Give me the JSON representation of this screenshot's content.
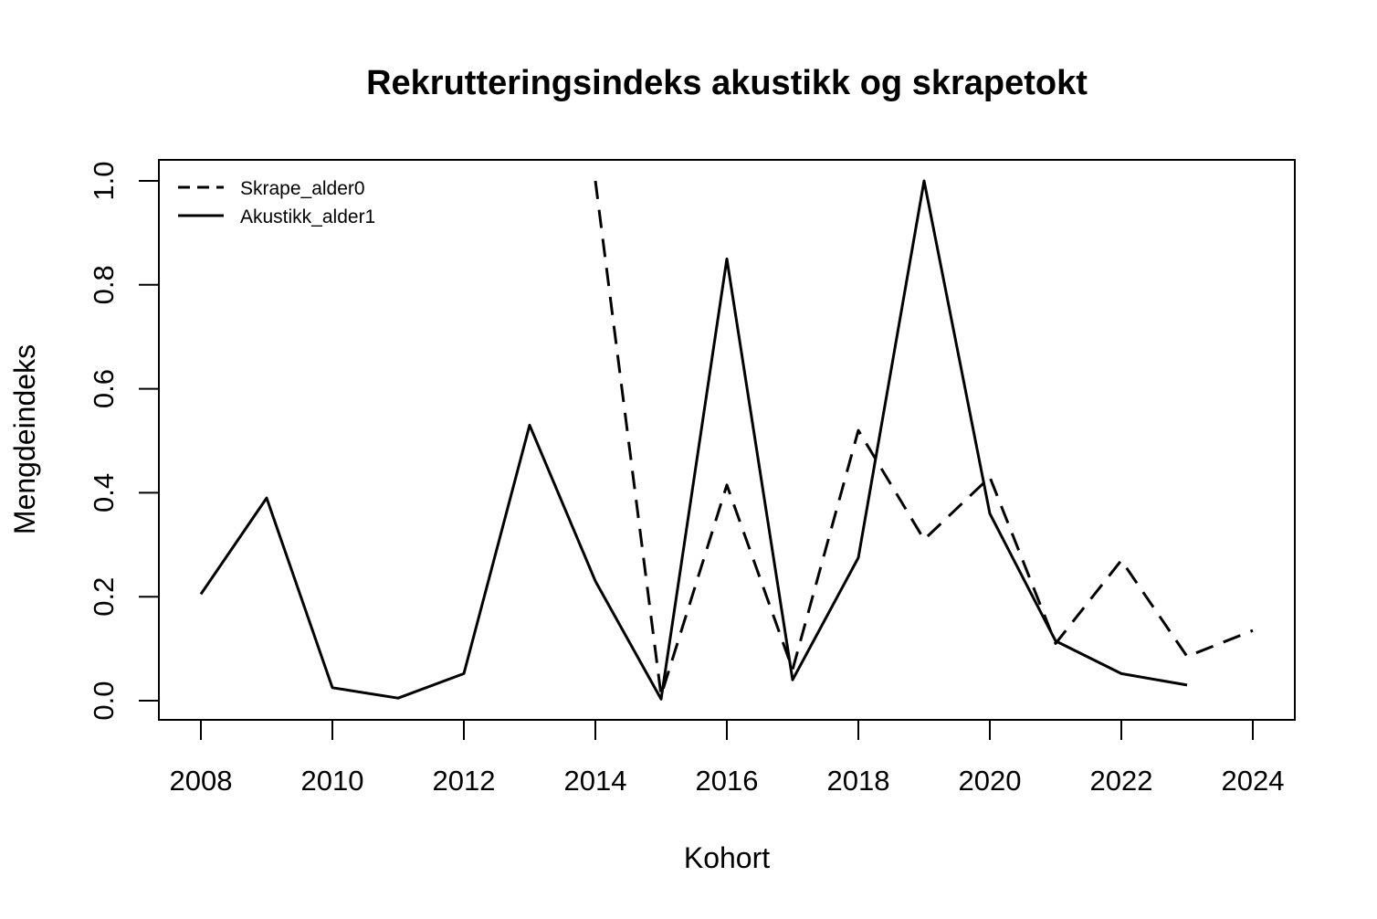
{
  "chart_data": {
    "type": "line",
    "title": "Rekrutteringsindeks akustikk og skrapetokt",
    "xlabel": "Kohort",
    "ylabel": "Mengdeindeks",
    "xlim": [
      2008,
      2024
    ],
    "ylim": [
      0,
      1
    ],
    "x_ticks": [
      "2008",
      "2010",
      "2012",
      "2014",
      "2016",
      "2018",
      "2020",
      "2022",
      "2024"
    ],
    "y_ticks": [
      "0.0",
      "0.2",
      "0.4",
      "0.6",
      "0.8",
      "1.0"
    ],
    "grid": false,
    "legend_position": "top-left",
    "series": [
      {
        "name": "Skrape_alder0",
        "line_style": "dashed",
        "color": "#000000",
        "x": [
          2014,
          2015,
          2016,
          2017,
          2018,
          2019,
          2020,
          2021,
          2022,
          2023,
          2024
        ],
        "values": [
          1.0,
          0.01,
          0.415,
          0.06,
          0.52,
          0.31,
          0.43,
          0.11,
          0.27,
          0.085,
          0.135
        ]
      },
      {
        "name": "Akustikk_alder1",
        "line_style": "solid",
        "color": "#000000",
        "x": [
          2008,
          2009,
          2010,
          2011,
          2012,
          2013,
          2014,
          2015,
          2016,
          2017,
          2018,
          2019,
          2020,
          2021,
          2022,
          2023
        ],
        "values": [
          0.205,
          0.39,
          0.025,
          0.005,
          0.052,
          0.53,
          0.23,
          0.003,
          0.85,
          0.04,
          0.275,
          1.0,
          0.36,
          0.115,
          0.052,
          0.03
        ]
      }
    ]
  }
}
